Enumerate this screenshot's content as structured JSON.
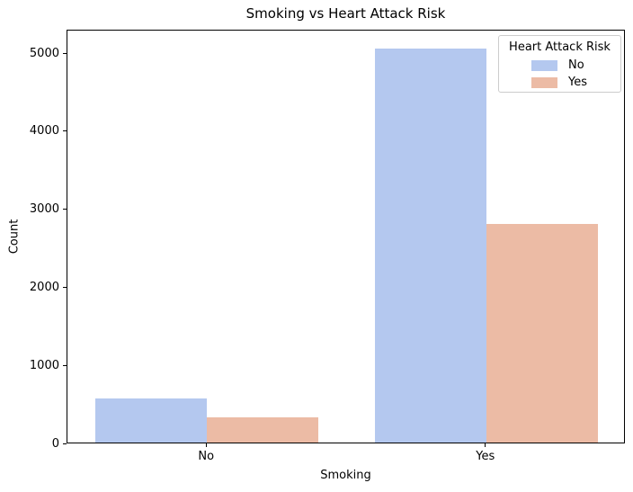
{
  "figure": {
    "background": "#ffffff"
  },
  "chart_data": {
    "type": "bar",
    "title": "Smoking vs Heart Attack Risk",
    "xlabel": "Smoking",
    "ylabel": "Count",
    "categories": [
      "No",
      "Yes"
    ],
    "series": [
      {
        "name": "No",
        "color": "#b4c8ef",
        "values": [
          570,
          5050
        ]
      },
      {
        "name": "Yes",
        "color": "#ecbba5",
        "values": [
          325,
          2805
        ]
      }
    ],
    "ylim": [
      0,
      5300
    ],
    "yticks": [
      0,
      1000,
      2000,
      3000,
      4000,
      5000
    ],
    "grid": false,
    "bar_group_width_fraction": 0.8,
    "legend": {
      "title": "Heart Attack Risk",
      "position": "upper right",
      "entries": [
        "No",
        "Yes"
      ]
    }
  }
}
